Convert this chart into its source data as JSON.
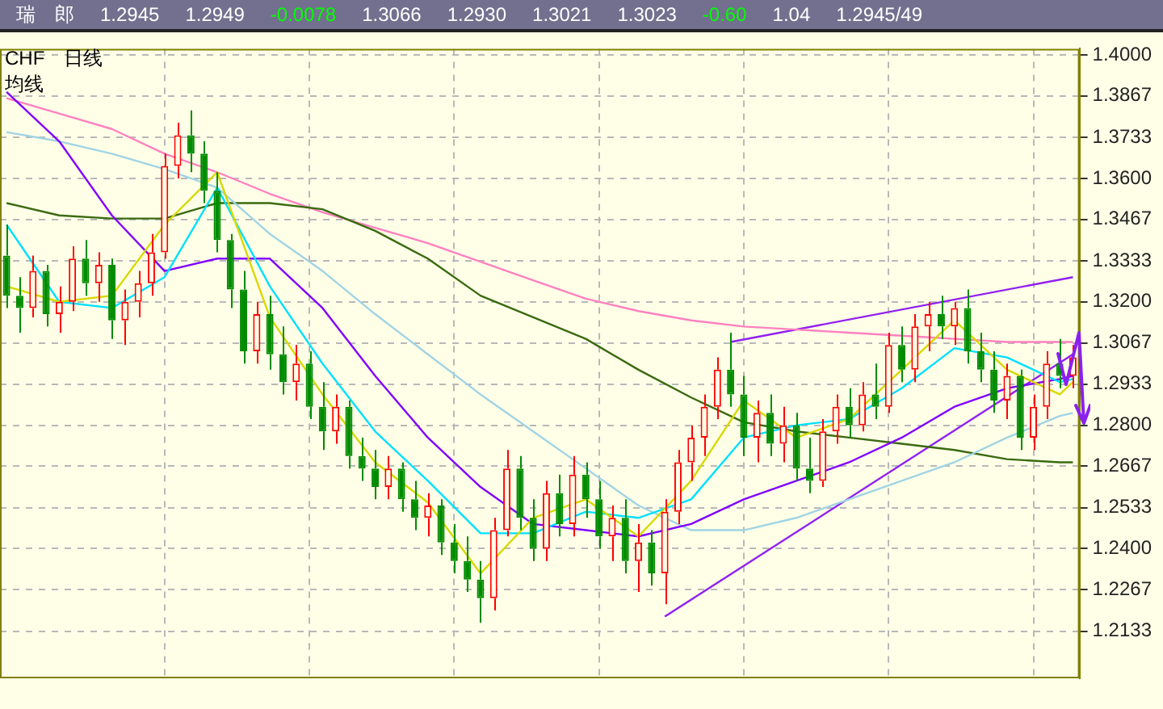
{
  "chart_data": {
    "type": "candlestick",
    "title": "瑞　郎",
    "subtitle": "CHF　日线",
    "legend_title": "均线",
    "annotations": [
      "1.2945",
      "1.2949",
      "-0.0078",
      "1.3066",
      "1.2930",
      "1.3021",
      "1.3023",
      "-0.60",
      "1.04",
      "1.2945/49"
    ],
    "categories": [
      null,
      null,
      null,
      null,
      null,
      null,
      null,
      null,
      null,
      null,
      null,
      null,
      null,
      null,
      null,
      null,
      null,
      null,
      null,
      null,
      null,
      null,
      null,
      null,
      null,
      null,
      null,
      null,
      null,
      null,
      null,
      null,
      null,
      null,
      null,
      null,
      null,
      null,
      null,
      null,
      null,
      null,
      null,
      null,
      null,
      null,
      null,
      null,
      null,
      null,
      null,
      null,
      null,
      null,
      null,
      null,
      null,
      null,
      null,
      null,
      null,
      null,
      null,
      null,
      null,
      null,
      null,
      null,
      null,
      null,
      null,
      null,
      null,
      null,
      null,
      null,
      null,
      null,
      null,
      null,
      null,
      null
    ],
    "ohlc": [
      [
        1.335,
        1.345,
        1.318,
        1.322
      ],
      [
        1.322,
        1.328,
        1.31,
        1.318
      ],
      [
        1.318,
        1.335,
        1.315,
        1.33
      ],
      [
        1.33,
        1.332,
        1.312,
        1.316
      ],
      [
        1.316,
        1.325,
        1.31,
        1.32
      ],
      [
        1.32,
        1.338,
        1.317,
        1.334
      ],
      [
        1.334,
        1.34,
        1.322,
        1.326
      ],
      [
        1.326,
        1.336,
        1.32,
        1.332
      ],
      [
        1.332,
        1.334,
        1.308,
        1.314
      ],
      [
        1.314,
        1.324,
        1.306,
        1.32
      ],
      [
        1.32,
        1.33,
        1.315,
        1.326
      ],
      [
        1.326,
        1.342,
        1.322,
        1.336
      ],
      [
        1.336,
        1.368,
        1.334,
        1.364
      ],
      [
        1.364,
        1.378,
        1.36,
        1.374
      ],
      [
        1.374,
        1.382,
        1.362,
        1.368
      ],
      [
        1.368,
        1.372,
        1.352,
        1.356
      ],
      [
        1.356,
        1.362,
        1.336,
        1.34
      ],
      [
        1.34,
        1.342,
        1.318,
        1.324
      ],
      [
        1.324,
        1.33,
        1.3,
        1.304
      ],
      [
        1.304,
        1.32,
        1.3,
        1.316
      ],
      [
        1.316,
        1.322,
        1.298,
        1.303
      ],
      [
        1.303,
        1.312,
        1.29,
        1.294
      ],
      [
        1.294,
        1.306,
        1.288,
        1.3
      ],
      [
        1.3,
        1.304,
        1.282,
        1.286
      ],
      [
        1.286,
        1.294,
        1.272,
        1.278
      ],
      [
        1.278,
        1.29,
        1.274,
        1.286
      ],
      [
        1.286,
        1.288,
        1.266,
        1.27
      ],
      [
        1.27,
        1.276,
        1.262,
        1.266
      ],
      [
        1.266,
        1.272,
        1.256,
        1.26
      ],
      [
        1.26,
        1.27,
        1.256,
        1.266
      ],
      [
        1.266,
        1.268,
        1.252,
        1.256
      ],
      [
        1.256,
        1.262,
        1.246,
        1.25
      ],
      [
        1.25,
        1.258,
        1.244,
        1.254
      ],
      [
        1.254,
        1.256,
        1.238,
        1.242
      ],
      [
        1.242,
        1.248,
        1.232,
        1.236
      ],
      [
        1.236,
        1.244,
        1.226,
        1.23
      ],
      [
        1.23,
        1.236,
        1.216,
        1.224
      ],
      [
        1.224,
        1.25,
        1.22,
        1.246
      ],
      [
        1.246,
        1.272,
        1.244,
        1.266
      ],
      [
        1.266,
        1.27,
        1.246,
        1.25
      ],
      [
        1.25,
        1.256,
        1.236,
        1.24
      ],
      [
        1.24,
        1.262,
        1.236,
        1.258
      ],
      [
        1.258,
        1.264,
        1.244,
        1.248
      ],
      [
        1.248,
        1.27,
        1.244,
        1.264
      ],
      [
        1.264,
        1.268,
        1.25,
        1.256
      ],
      [
        1.256,
        1.262,
        1.24,
        1.244
      ],
      [
        1.244,
        1.254,
        1.236,
        1.25
      ],
      [
        1.25,
        1.256,
        1.232,
        1.236
      ],
      [
        1.236,
        1.248,
        1.226,
        1.242
      ],
      [
        1.242,
        1.246,
        1.228,
        1.232
      ],
      [
        1.232,
        1.256,
        1.222,
        1.252
      ],
      [
        1.252,
        1.272,
        1.248,
        1.268
      ],
      [
        1.268,
        1.28,
        1.262,
        1.276
      ],
      [
        1.276,
        1.29,
        1.27,
        1.286
      ],
      [
        1.286,
        1.302,
        1.282,
        1.298
      ],
      [
        1.298,
        1.31,
        1.286,
        1.29
      ],
      [
        1.29,
        1.296,
        1.27,
        1.276
      ],
      [
        1.276,
        1.288,
        1.268,
        1.284
      ],
      [
        1.284,
        1.29,
        1.27,
        1.274
      ],
      [
        1.274,
        1.286,
        1.268,
        1.28
      ],
      [
        1.28,
        1.284,
        1.262,
        1.266
      ],
      [
        1.266,
        1.276,
        1.258,
        1.262
      ],
      [
        1.262,
        1.282,
        1.26,
        1.278
      ],
      [
        1.278,
        1.29,
        1.274,
        1.286
      ],
      [
        1.286,
        1.292,
        1.276,
        1.28
      ],
      [
        1.28,
        1.294,
        1.278,
        1.29
      ],
      [
        1.29,
        1.3,
        1.282,
        1.286
      ],
      [
        1.286,
        1.31,
        1.284,
        1.306
      ],
      [
        1.306,
        1.312,
        1.294,
        1.298
      ],
      [
        1.298,
        1.316,
        1.294,
        1.312
      ],
      [
        1.312,
        1.32,
        1.304,
        1.316
      ],
      [
        1.316,
        1.322,
        1.308,
        1.312
      ],
      [
        1.312,
        1.32,
        1.306,
        1.318
      ],
      [
        1.318,
        1.324,
        1.3,
        1.304
      ],
      [
        1.304,
        1.31,
        1.294,
        1.298
      ],
      [
        1.298,
        1.304,
        1.284,
        1.288
      ],
      [
        1.288,
        1.3,
        1.282,
        1.296
      ],
      [
        1.296,
        1.298,
        1.272,
        1.276
      ],
      [
        1.276,
        1.29,
        1.272,
        1.286
      ],
      [
        1.286,
        1.304,
        1.282,
        1.3
      ],
      [
        1.3,
        1.308,
        1.292,
        1.296
      ],
      [
        1.296,
        1.306,
        1.292,
        1.302
      ]
    ],
    "colors": [
      "#008c00",
      "#008c00",
      "#ff0000",
      "#008c00",
      "#ff0000",
      "#ff0000",
      "#008c00",
      "#ff0000",
      "#008c00",
      "#ff0000",
      "#ff0000",
      "#ff0000",
      "#ff0000",
      "#ff0000",
      "#008c00",
      "#008c00",
      "#008c00",
      "#008c00",
      "#008c00",
      "#ff0000",
      "#008c00",
      "#008c00",
      "#ff0000",
      "#008c00",
      "#008c00",
      "#ff0000",
      "#008c00",
      "#008c00",
      "#008c00",
      "#ff0000",
      "#008c00",
      "#008c00",
      "#ff0000",
      "#008c00",
      "#008c00",
      "#008c00",
      "#008c00",
      "#ff0000",
      "#ff0000",
      "#008c00",
      "#008c00",
      "#ff0000",
      "#008c00",
      "#ff0000",
      "#008c00",
      "#008c00",
      "#ff0000",
      "#008c00",
      "#ff0000",
      "#008c00",
      "#ff0000",
      "#ff0000",
      "#ff0000",
      "#ff0000",
      "#ff0000",
      "#008c00",
      "#008c00",
      "#ff0000",
      "#008c00",
      "#ff0000",
      "#008c00",
      "#008c00",
      "#ff0000",
      "#ff0000",
      "#008c00",
      "#ff0000",
      "#008c00",
      "#ff0000",
      "#008c00",
      "#ff0000",
      "#ff0000",
      "#008c00",
      "#ff0000",
      "#008c00",
      "#008c00",
      "#008c00",
      "#ff0000",
      "#008c00",
      "#ff0000",
      "#ff0000",
      "#008c00",
      "#ff0000"
    ],
    "series": [
      {
        "type": "line",
        "color": "#d8d800",
        "values": [
          1.325,
          null,
          null,
          null,
          1.32,
          null,
          null,
          null,
          1.322,
          null,
          null,
          null,
          1.345,
          null,
          null,
          null,
          1.362,
          null,
          null,
          null,
          1.315,
          null,
          null,
          null,
          1.29,
          null,
          null,
          null,
          1.268,
          null,
          null,
          null,
          1.255,
          null,
          null,
          null,
          1.232,
          null,
          null,
          null,
          1.25,
          null,
          null,
          null,
          1.256,
          null,
          null,
          null,
          1.244,
          null,
          null,
          null,
          1.262,
          null,
          null,
          null,
          1.288,
          null,
          null,
          null,
          1.276,
          null,
          null,
          null,
          1.282,
          null,
          null,
          null,
          1.298,
          null,
          null,
          null,
          1.314,
          null,
          null,
          null,
          1.298,
          null,
          null,
          null,
          1.29,
          1.294
        ]
      },
      {
        "type": "line",
        "color": "#00e0ff",
        "values": [
          1.345,
          null,
          null,
          null,
          1.32,
          null,
          null,
          null,
          1.318,
          null,
          null,
          null,
          1.328,
          null,
          null,
          null,
          1.357,
          null,
          null,
          null,
          1.325,
          null,
          null,
          null,
          1.3,
          null,
          null,
          null,
          1.278,
          null,
          null,
          null,
          1.262,
          null,
          null,
          null,
          1.245,
          null,
          null,
          null,
          1.245,
          null,
          null,
          null,
          1.252,
          null,
          null,
          null,
          1.25,
          null,
          null,
          null,
          1.256,
          null,
          null,
          null,
          1.276,
          null,
          null,
          null,
          1.28,
          null,
          null,
          null,
          1.282,
          null,
          null,
          null,
          1.292,
          null,
          null,
          null,
          1.305,
          null,
          null,
          null,
          1.302,
          null,
          null,
          null,
          1.294,
          1.295
        ]
      },
      {
        "type": "line",
        "color": "#8000ff",
        "values": [
          1.388,
          null,
          null,
          null,
          1.372,
          null,
          null,
          null,
          1.348,
          null,
          null,
          null,
          1.33,
          null,
          null,
          null,
          1.334,
          null,
          null,
          null,
          1.334,
          null,
          null,
          null,
          1.318,
          null,
          null,
          null,
          1.296,
          null,
          null,
          null,
          1.276,
          null,
          null,
          null,
          1.26,
          null,
          null,
          null,
          1.248,
          null,
          null,
          null,
          1.246,
          null,
          null,
          null,
          1.244,
          null,
          null,
          null,
          1.248,
          null,
          null,
          null,
          1.256,
          null,
          null,
          null,
          1.262,
          null,
          null,
          null,
          1.268,
          null,
          null,
          null,
          1.276,
          null,
          null,
          null,
          1.286,
          null,
          null,
          null,
          1.292,
          null,
          null,
          null,
          1.295,
          1.296
        ]
      },
      {
        "type": "line",
        "color": "#a0d4e4",
        "values": [
          1.375,
          null,
          null,
          null,
          1.372,
          null,
          null,
          null,
          1.368,
          null,
          null,
          null,
          1.363,
          null,
          null,
          null,
          1.357,
          null,
          null,
          null,
          1.342,
          null,
          null,
          null,
          1.33,
          null,
          null,
          null,
          1.316,
          null,
          null,
          null,
          1.303,
          null,
          null,
          null,
          1.29,
          null,
          null,
          null,
          1.278,
          null,
          null,
          null,
          1.266,
          null,
          null,
          null,
          1.254,
          null,
          null,
          null,
          1.246,
          null,
          null,
          null,
          1.246,
          null,
          null,
          null,
          1.25,
          null,
          null,
          null,
          1.256,
          null,
          null,
          null,
          1.262,
          null,
          null,
          null,
          1.268,
          null,
          null,
          null,
          1.276,
          null,
          null,
          null,
          1.283,
          1.284
        ]
      },
      {
        "type": "line",
        "color": "#3a6a10",
        "values": [
          1.352,
          null,
          null,
          null,
          1.348,
          null,
          null,
          null,
          1.347,
          null,
          null,
          null,
          1.347,
          null,
          null,
          null,
          1.352,
          null,
          null,
          null,
          1.352,
          null,
          null,
          null,
          1.35,
          null,
          null,
          null,
          1.343,
          null,
          null,
          null,
          1.334,
          null,
          null,
          null,
          1.322,
          null,
          null,
          null,
          1.315,
          null,
          null,
          null,
          1.308,
          null,
          null,
          null,
          1.298,
          null,
          null,
          null,
          1.289,
          null,
          null,
          null,
          1.281,
          null,
          null,
          null,
          1.278,
          null,
          null,
          null,
          1.276,
          null,
          null,
          null,
          1.274,
          null,
          null,
          null,
          1.272,
          null,
          null,
          null,
          1.269,
          null,
          null,
          null,
          1.268,
          1.268
        ]
      },
      {
        "type": "line",
        "color": "#ff80c0",
        "values": [
          1.386,
          null,
          null,
          null,
          1.381,
          null,
          null,
          null,
          1.376,
          null,
          null,
          null,
          1.368,
          null,
          null,
          null,
          1.362,
          null,
          null,
          null,
          1.355,
          null,
          null,
          null,
          1.349,
          null,
          null,
          null,
          1.344,
          null,
          null,
          null,
          1.339,
          null,
          null,
          null,
          1.333,
          null,
          null,
          null,
          1.327,
          null,
          null,
          null,
          1.321,
          null,
          null,
          null,
          1.317,
          null,
          null,
          null,
          1.314,
          null,
          null,
          null,
          1.312,
          null,
          null,
          null,
          1.311,
          null,
          null,
          null,
          1.31,
          null,
          null,
          null,
          1.309,
          null,
          null,
          null,
          1.308,
          null,
          null,
          null,
          1.307,
          null,
          null,
          null,
          1.307,
          1.307
        ]
      },
      {
        "type": "line",
        "color": "#9020f0",
        "values": [
          null,
          null,
          null,
          null,
          null,
          null,
          null,
          null,
          null,
          null,
          null,
          null,
          null,
          null,
          null,
          null,
          null,
          null,
          null,
          null,
          null,
          null,
          null,
          null,
          null,
          null,
          null,
          null,
          null,
          null,
          null,
          null,
          null,
          null,
          null,
          null,
          null,
          null,
          null,
          null,
          null,
          null,
          null,
          null,
          null,
          null,
          null,
          null,
          null,
          null,
          null,
          null,
          null,
          null,
          null,
          1.307,
          null,
          null,
          null,
          null,
          null,
          null,
          null,
          null,
          null,
          null,
          null,
          null,
          null,
          null,
          null,
          null,
          null,
          null,
          null,
          null,
          null,
          null,
          null,
          null,
          null,
          1.328
        ]
      },
      {
        "type": "line",
        "color": "#9020f0",
        "values": [
          null,
          null,
          null,
          null,
          null,
          null,
          null,
          null,
          null,
          null,
          null,
          null,
          null,
          null,
          null,
          null,
          null,
          null,
          null,
          null,
          null,
          null,
          null,
          null,
          null,
          null,
          null,
          null,
          null,
          null,
          null,
          null,
          null,
          null,
          null,
          null,
          null,
          null,
          null,
          null,
          null,
          null,
          null,
          null,
          null,
          null,
          null,
          null,
          null,
          null,
          1.218,
          null,
          null,
          null,
          null,
          null,
          null,
          null,
          null,
          null,
          null,
          null,
          null,
          null,
          null,
          null,
          null,
          null,
          null,
          null,
          null,
          null,
          null,
          null,
          null,
          null,
          null,
          null,
          null,
          null,
          null,
          1.303
        ]
      }
    ],
    "ylim": [
      1.198,
      1.402
    ],
    "yticks": [
      {
        "value": 1.4,
        "label": "1.4000"
      },
      {
        "value": 1.3867,
        "label": "1.3867"
      },
      {
        "value": 1.3733,
        "label": "1.3733"
      },
      {
        "value": 1.36,
        "label": "1.3600"
      },
      {
        "value": 1.3467,
        "label": "1.3467"
      },
      {
        "value": 1.3333,
        "label": "1.3333"
      },
      {
        "value": 1.32,
        "label": "1.3200"
      },
      {
        "value": 1.3067,
        "label": "1.3067"
      },
      {
        "value": 1.2933,
        "label": "1.2933"
      },
      {
        "value": 1.28,
        "label": "1.2800"
      },
      {
        "value": 1.2667,
        "label": "1.2667"
      },
      {
        "value": 1.2533,
        "label": "1.2533"
      },
      {
        "value": 1.24,
        "label": "1.2400"
      },
      {
        "value": 1.2267,
        "label": "1.2267"
      },
      {
        "value": 1.2133,
        "label": "1.2133"
      }
    ],
    "grid": true,
    "tick_labels": "y"
  }
}
